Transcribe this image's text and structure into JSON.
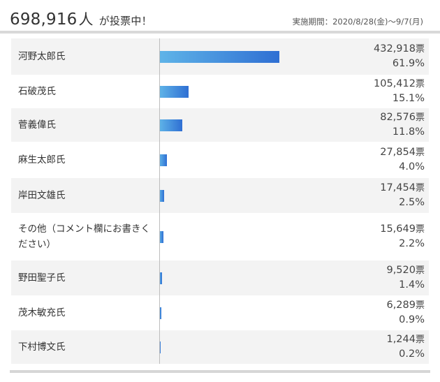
{
  "header": {
    "total_votes": "698,916",
    "total_unit": "人",
    "total_suffix": "が投票中！",
    "period": "実施期間：2020/8/28(金)〜9/7(月)"
  },
  "results": [
    {
      "name": "河野太郎氏",
      "votes": "432,918",
      "vote_unit": "票",
      "percent": "61.9%",
      "share": 61.9
    },
    {
      "name": "石破茂氏",
      "votes": "105,412",
      "vote_unit": "票",
      "percent": "15.1%",
      "share": 15.1
    },
    {
      "name": "菅義偉氏",
      "votes": "82,576",
      "vote_unit": "票",
      "percent": "11.8%",
      "share": 11.8
    },
    {
      "name": "麻生太郎氏",
      "votes": "27,854",
      "vote_unit": "票",
      "percent": "4.0%",
      "share": 4.0
    },
    {
      "name": "岸田文雄氏",
      "votes": "17,454",
      "vote_unit": "票",
      "percent": "2.5%",
      "share": 2.5
    },
    {
      "name": "その他（コメント欄にお書きください）",
      "votes": "15,649",
      "vote_unit": "票",
      "percent": "2.2%",
      "share": 2.2
    },
    {
      "name": "野田聖子氏",
      "votes": "9,520",
      "vote_unit": "票",
      "percent": "1.4%",
      "share": 1.4
    },
    {
      "name": "茂木敏充氏",
      "votes": "6,289",
      "vote_unit": "票",
      "percent": "0.9%",
      "share": 0.9
    },
    {
      "name": "下村博文氏",
      "votes": "1,244",
      "vote_unit": "票",
      "percent": "0.2%",
      "share": 0.2
    }
  ],
  "colors": {
    "bar_start": "#5fb4e8",
    "bar_end": "#2f6fd3",
    "row_alt": "#f3f3f3"
  }
}
